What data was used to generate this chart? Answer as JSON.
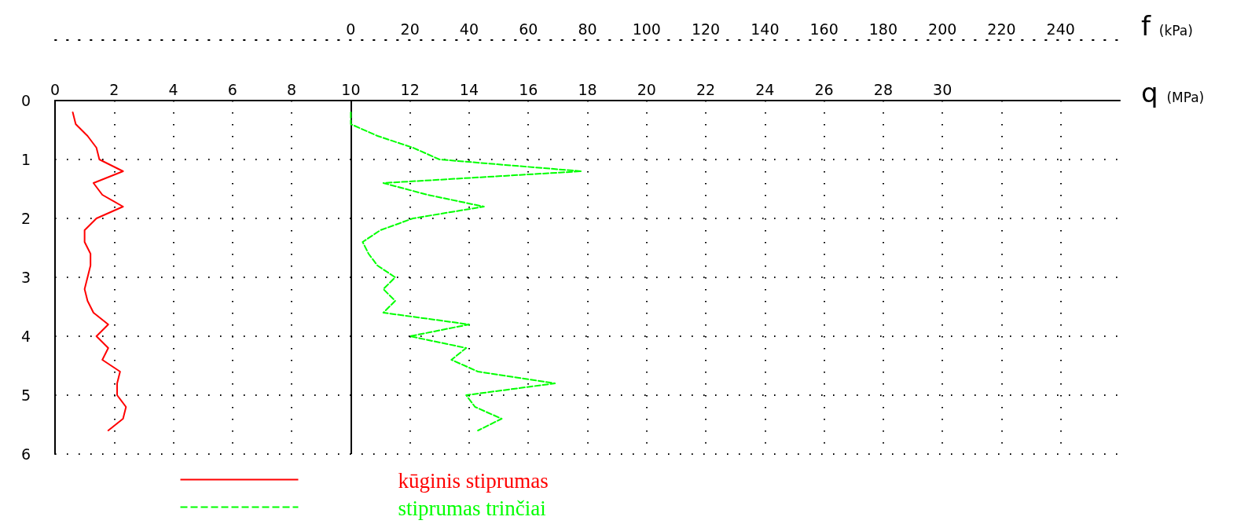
{
  "chart_data": {
    "type": "line",
    "xlabel": "q (MPa)",
    "x2label": "f (kPa)",
    "xlim": [
      0,
      36
    ],
    "xticks": [
      0,
      2,
      4,
      6,
      8,
      10,
      12,
      14,
      16,
      18,
      20,
      22,
      24,
      26,
      28,
      30,
      {
        "value": 32,
        "label": null
      },
      {
        "value": 34,
        "label": null
      }
    ],
    "x2lim": [
      -100,
      260
    ],
    "x2ticks": [
      0,
      20,
      40,
      60,
      80,
      100,
      120,
      140,
      160,
      180,
      200,
      220,
      240
    ],
    "ylim": [
      6,
      0
    ],
    "yticks": [
      0,
      1,
      2,
      3,
      4,
      5,
      6
    ],
    "grid": true,
    "legend": "bottom",
    "marker": "none",
    "ref_lines": [
      {
        "axis": "x2",
        "value": 0,
        "color": "#000000",
        "line_style": "solid"
      }
    ],
    "series": [
      {
        "name": "kūginis stiprumas",
        "color": "#ff0000",
        "line_style": "solid",
        "x": [
          0.6,
          0.7,
          1.1,
          1.4,
          1.5,
          2.3,
          1.3,
          1.6,
          2.3,
          1.4,
          1.0,
          1.0,
          1.2,
          1.2,
          1.1,
          1.0,
          1.1,
          1.3,
          1.8,
          1.4,
          1.8,
          1.6,
          2.2,
          2.1,
          2.1,
          2.4,
          2.3,
          1.8
        ],
        "values": [
          0.2,
          0.4,
          0.6,
          0.8,
          1.0,
          1.2,
          1.4,
          1.6,
          1.8,
          2.0,
          2.2,
          2.4,
          2.6,
          2.8,
          3.0,
          3.2,
          3.4,
          3.6,
          3.8,
          4.0,
          4.2,
          4.4,
          4.6,
          4.8,
          5.0,
          5.2,
          5.4,
          5.6
        ]
      },
      {
        "name": "stiprumas trinčiai",
        "color": "#00ff00",
        "line_style": "dashed",
        "axis": "x2",
        "x": [
          0,
          0,
          9,
          21,
          30,
          78,
          11,
          26,
          45,
          21,
          10,
          4,
          6,
          9,
          15,
          11,
          15,
          11,
          40,
          20,
          39,
          34,
          43,
          69,
          39,
          42,
          51,
          43
        ],
        "values": [
          0.2,
          0.4,
          0.6,
          0.8,
          1.0,
          1.2,
          1.4,
          1.6,
          1.8,
          2.0,
          2.2,
          2.4,
          2.6,
          2.8,
          3.0,
          3.2,
          3.4,
          3.6,
          3.8,
          4.0,
          4.2,
          4.4,
          4.6,
          4.8,
          5.0,
          5.2,
          5.4,
          5.6
        ]
      }
    ]
  }
}
